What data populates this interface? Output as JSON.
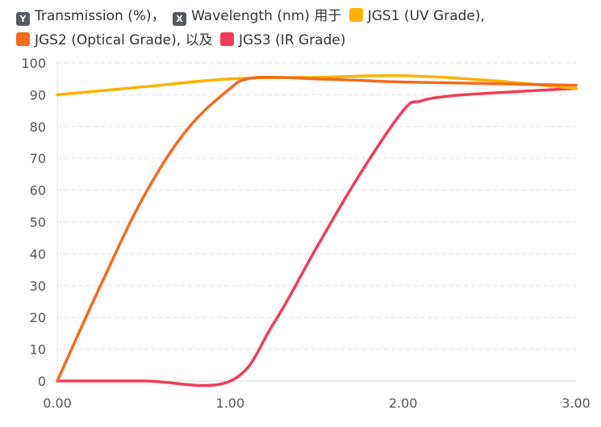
{
  "legend": {
    "y_key": "Y",
    "y_label": "Transmission (%)",
    "sep1": "，",
    "x_key": "X",
    "x_label": "Wavelength (nm)",
    "for_word": "用于",
    "series1": "JGS1 (UV Grade),",
    "series2": "JGS2 (Optical Grade),",
    "and_word": "以及",
    "series3": "JGS3 (IR Grade)"
  },
  "chart_data": {
    "type": "line",
    "title": "",
    "xlabel": "Wavelength (nm)",
    "ylabel": "Transmission (%)",
    "xlim": [
      0,
      3
    ],
    "ylim": [
      0,
      100
    ],
    "x_ticks": [
      "0.00",
      "1.00",
      "2.00",
      "3.00"
    ],
    "y_ticks": [
      "0",
      "10",
      "20",
      "30",
      "40",
      "50",
      "60",
      "70",
      "80",
      "90",
      "100"
    ],
    "grid": "horizontal dashed",
    "legend_position": "top-left",
    "series": [
      {
        "name": "JGS1 (UV Grade)",
        "color": "#fdb100",
        "x": [
          0,
          0.5,
          1.0,
          1.5,
          2.0,
          2.5,
          3.0
        ],
        "y": [
          90,
          92.5,
          95,
          95.5,
          96,
          94.5,
          92
        ]
      },
      {
        "name": "JGS2 (Optical Grade)",
        "color": "#f26b21",
        "x": [
          0,
          0.25,
          0.5,
          0.75,
          1.0,
          1.1,
          1.25,
          1.5,
          1.75,
          2.0,
          2.5,
          3.0
        ],
        "y": [
          0,
          30,
          58,
          79,
          92,
          95,
          95.5,
          95,
          94.5,
          94,
          93.5,
          93
        ]
      },
      {
        "name": "JGS3 (IR Grade)",
        "color": "#f03c5a",
        "x": [
          0,
          0.5,
          1.0,
          1.25,
          1.5,
          1.75,
          2.0,
          2.1,
          2.25,
          2.5,
          3.0
        ],
        "y": [
          0,
          0,
          0,
          18,
          42,
          65,
          85,
          88,
          89.5,
          90.5,
          92
        ]
      }
    ]
  }
}
